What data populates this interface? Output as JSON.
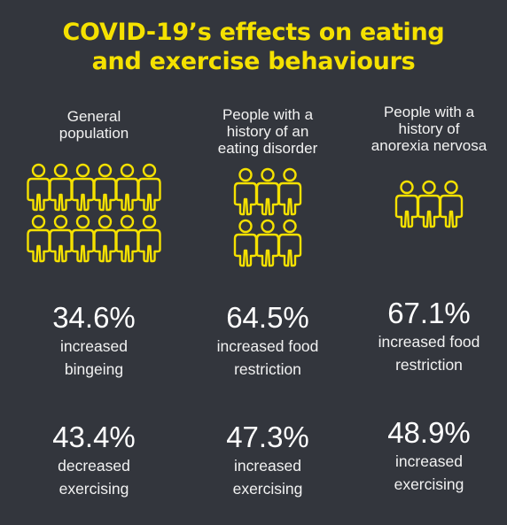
{
  "title": {
    "line1": "COVID-19’s effects on eating",
    "line2": "and exercise behaviours"
  },
  "accent_color": "#f5e100",
  "background_color": "#33363d",
  "icon": "person-outline-icon",
  "groups": [
    {
      "label_line1": "General",
      "label_line2": "population",
      "label_line3": "",
      "people_count": 12,
      "stats": [
        {
          "percent": "34.6%",
          "desc_line1": "increased",
          "desc_line2": "bingeing"
        },
        {
          "percent": "43.4%",
          "desc_line1": "decreased",
          "desc_line2": "exercising"
        }
      ]
    },
    {
      "label_line1": "People with a",
      "label_line2": "history of an",
      "label_line3": "eating disorder",
      "people_count": 6,
      "stats": [
        {
          "percent": "64.5%",
          "desc_line1": "increased food",
          "desc_line2": "restriction"
        },
        {
          "percent": "47.3%",
          "desc_line1": "increased",
          "desc_line2": "exercising"
        }
      ]
    },
    {
      "label_line1": "People with a",
      "label_line2": "history of",
      "label_line3": "anorexia nervosa",
      "people_count": 3,
      "stats": [
        {
          "percent": "67.1%",
          "desc_line1": "increased food",
          "desc_line2": "restriction"
        },
        {
          "percent": "48.9%",
          "desc_line1": "increased",
          "desc_line2": "exercising"
        }
      ]
    }
  ]
}
